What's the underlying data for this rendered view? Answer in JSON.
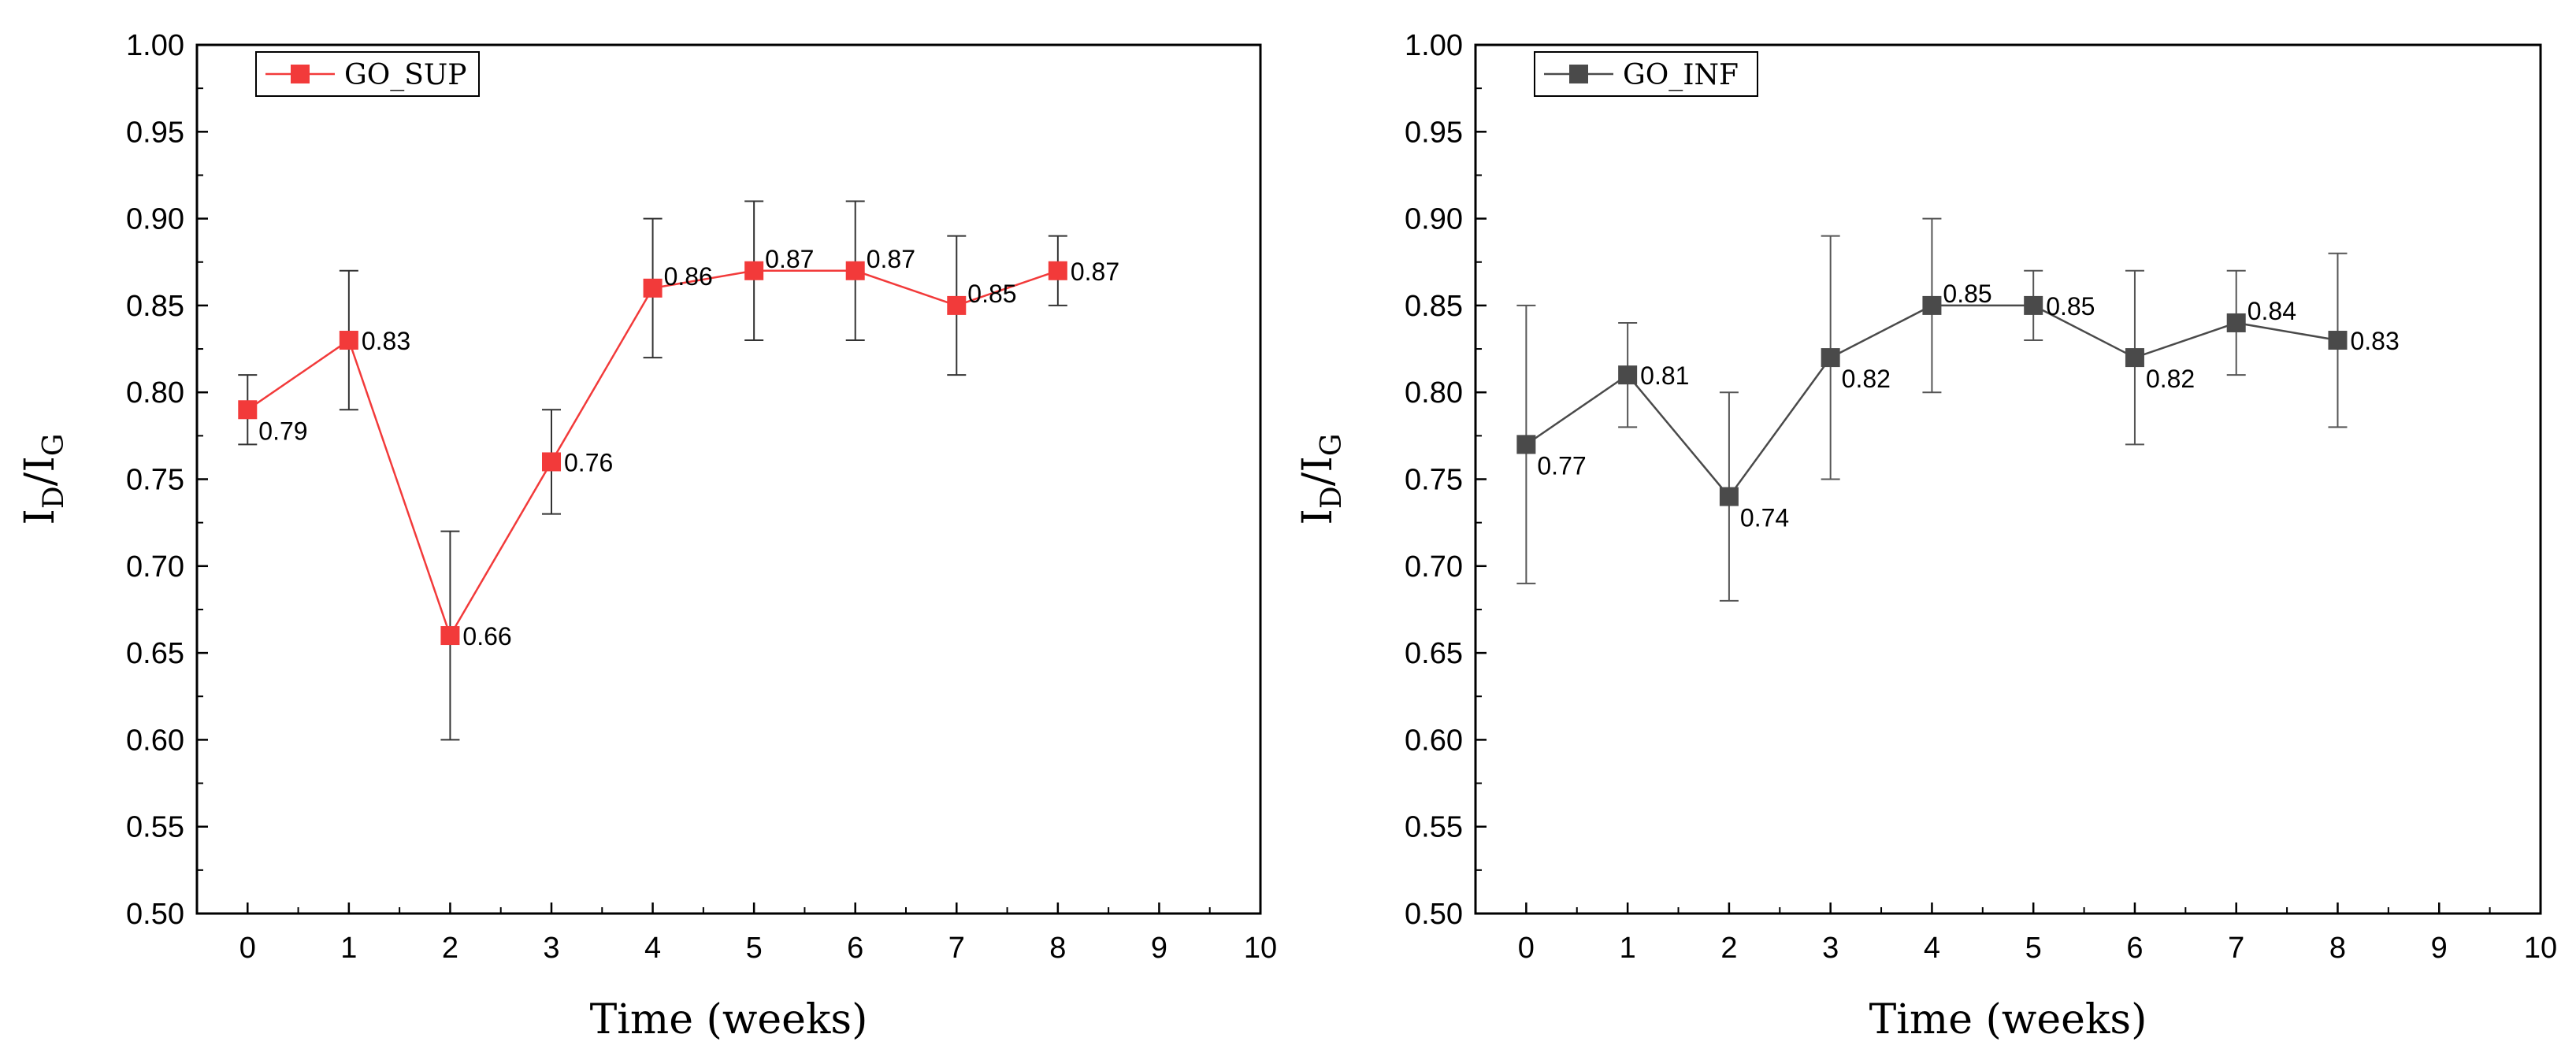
{
  "chart_data": [
    {
      "type": "line",
      "title": "",
      "xlabel": "Time (weeks)",
      "ylabel": {
        "main": "I",
        "sub1": "D",
        "slash": "/I",
        "sub2": "G"
      },
      "xlim": [
        -0.5,
        10
      ],
      "ylim": [
        0.5,
        1.0
      ],
      "xticks": [
        0,
        1,
        2,
        3,
        4,
        5,
        6,
        7,
        8,
        9,
        10
      ],
      "yticks": [
        0.5,
        0.55,
        0.6,
        0.65,
        0.7,
        0.75,
        0.8,
        0.85,
        0.9,
        0.95,
        1.0
      ],
      "grid": false,
      "legend_position": "top-left",
      "series": [
        {
          "name": "GO_SUP",
          "color": "#f23a3a",
          "error_color": "#333333",
          "marker": "square",
          "x": [
            0,
            1,
            2,
            3,
            4,
            5,
            6,
            7,
            8
          ],
          "y": [
            0.79,
            0.83,
            0.66,
            0.76,
            0.86,
            0.87,
            0.87,
            0.85,
            0.87
          ],
          "error_low": [
            0.77,
            0.79,
            0.6,
            0.73,
            0.82,
            0.83,
            0.83,
            0.81,
            0.85
          ],
          "error_high": [
            0.81,
            0.87,
            0.72,
            0.79,
            0.9,
            0.91,
            0.91,
            0.89,
            0.89
          ],
          "labels": [
            "0.79",
            "0.83",
            "0.66",
            "0.76",
            "0.86",
            "0.87",
            "0.87",
            "0.85",
            "0.87"
          ],
          "label_side": [
            "below-right",
            "right",
            "right",
            "right",
            "above-right",
            "above-right",
            "above-right",
            "above-right",
            "right"
          ]
        }
      ]
    },
    {
      "type": "line",
      "title": "",
      "xlabel": "Time (weeks)",
      "ylabel": {
        "main": "I",
        "sub1": "D",
        "slash": "/I",
        "sub2": "G"
      },
      "xlim": [
        -0.5,
        10
      ],
      "ylim": [
        0.5,
        1.0
      ],
      "xticks": [
        0,
        1,
        2,
        3,
        4,
        5,
        6,
        7,
        8,
        9,
        10
      ],
      "yticks": [
        0.5,
        0.55,
        0.6,
        0.65,
        0.7,
        0.75,
        0.8,
        0.85,
        0.9,
        0.95,
        1.0
      ],
      "grid": false,
      "legend_position": "top-left",
      "series": [
        {
          "name": "GO_INF",
          "color": "#4a4a4a",
          "error_color": "#555555",
          "marker": "square",
          "x": [
            0,
            1,
            2,
            3,
            4,
            5,
            6,
            7,
            8
          ],
          "y": [
            0.77,
            0.81,
            0.74,
            0.82,
            0.85,
            0.85,
            0.82,
            0.84,
            0.83
          ],
          "error_low": [
            0.69,
            0.78,
            0.68,
            0.75,
            0.8,
            0.83,
            0.77,
            0.81,
            0.78
          ],
          "error_high": [
            0.85,
            0.84,
            0.8,
            0.89,
            0.9,
            0.87,
            0.87,
            0.87,
            0.88
          ],
          "labels": [
            "0.77",
            "0.81",
            "0.74",
            "0.82",
            "0.85",
            "0.85",
            "0.82",
            "0.84",
            "0.83"
          ],
          "label_side": [
            "below-right",
            "right",
            "below-right",
            "below-right",
            "above-right",
            "right",
            "below-right",
            "above-right",
            "right"
          ]
        }
      ]
    }
  ]
}
